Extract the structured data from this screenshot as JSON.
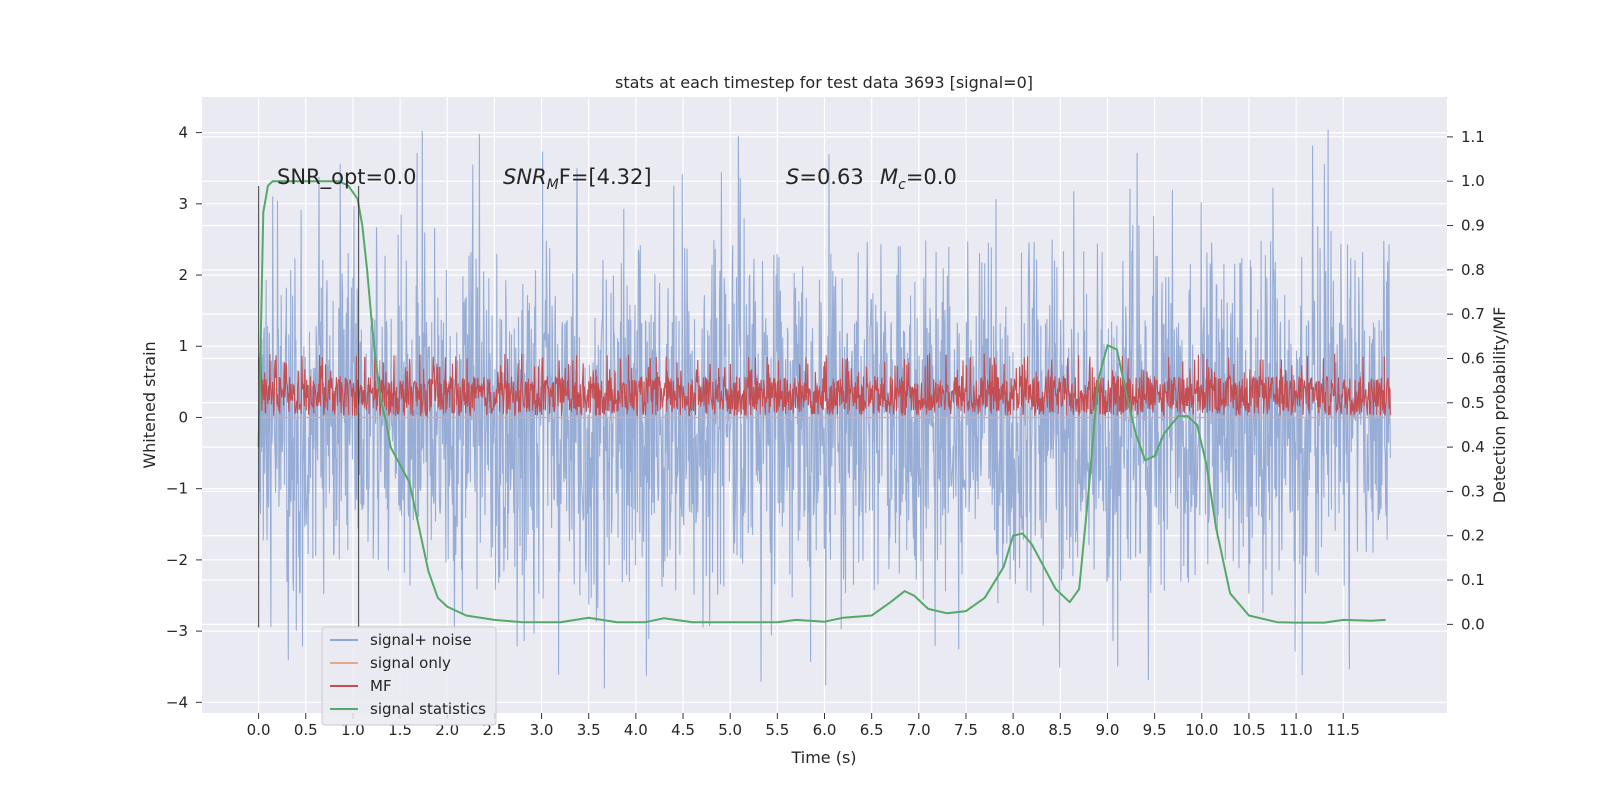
{
  "chart_data": {
    "type": "line",
    "title": "stats at each timestep for test data 3693 [signal=0]",
    "xlabel": "Time (s)",
    "ylabel_left": "Whitened strain",
    "ylabel_right": "Detection probability/MF",
    "xlim": [
      -0.6,
      12.6
    ],
    "ylim_left": [
      -4.15,
      4.5
    ],
    "ylim_right": [
      -0.2,
      1.19
    ],
    "x_ticks": [
      0.0,
      0.5,
      1.0,
      1.5,
      2.0,
      2.5,
      3.0,
      3.5,
      4.0,
      4.5,
      5.0,
      5.5,
      6.0,
      6.5,
      7.0,
      7.5,
      8.0,
      8.5,
      9.0,
      9.5,
      10.0,
      10.5,
      11.0,
      11.5
    ],
    "x_tick_labels": [
      "0.0",
      "0.5",
      "1.0",
      "1.5",
      "2.0",
      "2.5",
      "3.0",
      "3.5",
      "4.0",
      "4.5",
      "5.0",
      "5.5",
      "6.0",
      "6.5",
      "7.0",
      "7.5",
      "8.0",
      "8.5",
      "9.0",
      "9.5",
      "10.0",
      "10.5",
      "11.0",
      "11.5"
    ],
    "y_ticks_left": [
      -4,
      -3,
      -2,
      -1,
      0,
      1,
      2,
      3,
      4
    ],
    "y_tick_labels_left": [
      "−4",
      "−3",
      "−2",
      "−1",
      "0",
      "1",
      "2",
      "3",
      "4"
    ],
    "y_ticks_right": [
      0.0,
      0.1,
      0.2,
      0.3,
      0.4,
      0.5,
      0.6,
      0.7,
      0.8,
      0.9,
      1.0,
      1.1
    ],
    "y_tick_labels_right": [
      "0.0",
      "0.1",
      "0.2",
      "0.3",
      "0.4",
      "0.5",
      "0.6",
      "0.7",
      "0.8",
      "0.9",
      "1.0",
      "1.1"
    ],
    "grid": true,
    "legend_position": "lower-left",
    "annotations": {
      "snr_opt": "SNR_opt=0.0",
      "snr_mf_main": "SNR",
      "snr_mf_sub": "M",
      "snr_mf_rest": "F=[4.32]",
      "s_main": "S",
      "s_rest": "=0.63",
      "mc_main": "M",
      "mc_sub": "c",
      "mc_rest": "=0.0"
    },
    "vertical_markers": [
      {
        "x": 0.0,
        "y_bottom": -2.95,
        "y_top": 3.25
      },
      {
        "x": 1.06,
        "y_bottom": -2.95,
        "y_top": 3.25
      }
    ],
    "series": [
      {
        "name": "signal+ noise",
        "axis": "left",
        "color": "#8fa6d2",
        "noise": {
          "x_start": 0.0,
          "x_end": 12.0,
          "samples": 2400,
          "core_amplitude": 1.4,
          "spike_max": 4.1,
          "spike_min": -3.85
        }
      },
      {
        "name": "signal only",
        "axis": "left",
        "color": "#e8a58c",
        "values_note": "",
        "x": [
          0.0,
          12.0
        ],
        "y": [
          0.0,
          0.0
        ]
      },
      {
        "name": "MF",
        "axis": "left",
        "color": "#c44e52",
        "noise": {
          "x_start": 0.0,
          "x_end": 12.0,
          "samples": 2400,
          "min": 0.0,
          "max": 0.9,
          "mean": 0.3
        }
      },
      {
        "name": "signal statistics",
        "axis": "right",
        "color": "#55a868",
        "x": [
          0.0,
          0.05,
          0.1,
          0.15,
          0.2,
          0.3,
          0.5,
          0.7,
          0.85,
          0.95,
          1.05,
          1.1,
          1.15,
          1.2,
          1.25,
          1.3,
          1.35,
          1.4,
          1.5,
          1.6,
          1.7,
          1.8,
          1.9,
          2.0,
          2.2,
          2.5,
          2.8,
          3.2,
          3.5,
          3.8,
          4.1,
          4.3,
          4.6,
          5.0,
          5.5,
          5.7,
          6.0,
          6.2,
          6.5,
          6.7,
          6.85,
          6.95,
          7.1,
          7.3,
          7.5,
          7.7,
          7.9,
          8.0,
          8.1,
          8.2,
          8.3,
          8.45,
          8.6,
          8.7,
          8.8,
          8.9,
          9.0,
          9.1,
          9.2,
          9.3,
          9.4,
          9.5,
          9.6,
          9.75,
          9.85,
          9.95,
          10.05,
          10.15,
          10.3,
          10.5,
          10.8,
          11.0,
          11.3,
          11.5,
          11.8,
          11.95
        ],
        "y": [
          0.4,
          0.93,
          0.99,
          1.0,
          1.0,
          1.0,
          1.0,
          1.0,
          1.0,
          0.99,
          0.96,
          0.9,
          0.8,
          0.68,
          0.58,
          0.5,
          0.46,
          0.4,
          0.36,
          0.32,
          0.22,
          0.12,
          0.06,
          0.04,
          0.02,
          0.01,
          0.005,
          0.005,
          0.015,
          0.005,
          0.005,
          0.014,
          0.005,
          0.005,
          0.005,
          0.01,
          0.006,
          0.015,
          0.02,
          0.05,
          0.075,
          0.065,
          0.035,
          0.025,
          0.03,
          0.06,
          0.13,
          0.2,
          0.205,
          0.18,
          0.14,
          0.08,
          0.05,
          0.08,
          0.3,
          0.55,
          0.63,
          0.62,
          0.52,
          0.43,
          0.37,
          0.38,
          0.43,
          0.47,
          0.47,
          0.45,
          0.36,
          0.22,
          0.07,
          0.02,
          0.005,
          0.004,
          0.004,
          0.01,
          0.008,
          0.01
        ]
      }
    ]
  }
}
